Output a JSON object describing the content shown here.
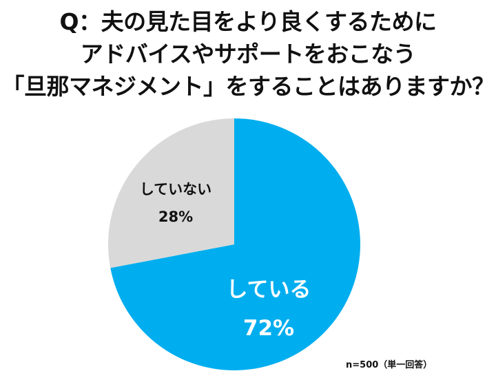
{
  "title": {
    "lines": [
      "Q：夫の見た目をより良くするために",
      "アドバイスやサポートをおこなう",
      "「旦那マネジメント」をすることはありますか？"
    ]
  },
  "labels": {
    "no": {
      "name": "していない",
      "pct": "28%"
    },
    "yes": {
      "name": "している",
      "pct": "72%"
    }
  },
  "note": "n=500（単一回答）",
  "colors": {
    "yes": "#00AEEF",
    "no": "#D9D9D9"
  },
  "chart_data": {
    "type": "pie",
    "title": "Q：夫の見た目をより良くするためにアドバイスやサポートをおこなう「旦那マネジメント」をすることはありますか？",
    "categories": [
      "している",
      "していない"
    ],
    "values": [
      72,
      28
    ],
    "unit": "%",
    "colors": [
      "#00AEEF",
      "#D9D9D9"
    ],
    "start_angle": "12 o'clock, clockwise",
    "annotation": "n=500（単一回答）",
    "legend": "none (labels inside slices)"
  }
}
